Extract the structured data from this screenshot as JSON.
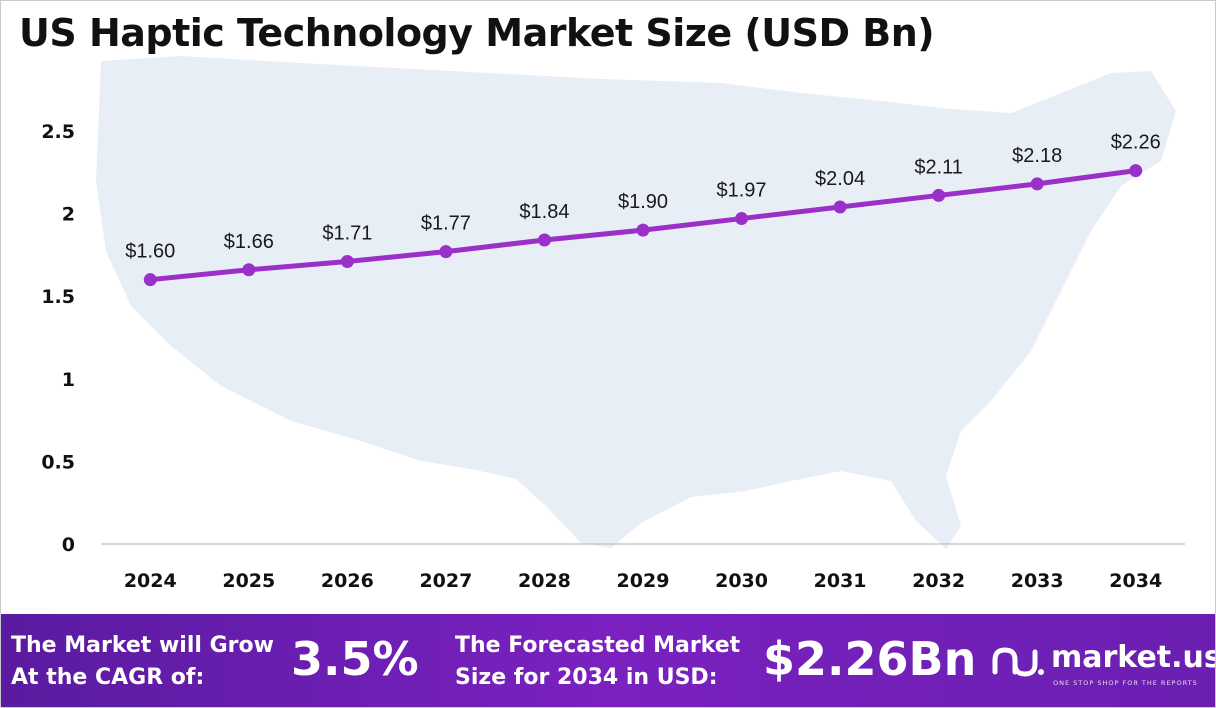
{
  "title": "US Haptic Technology Market Size (USD Bn)",
  "chart_data": {
    "type": "line",
    "title": "US Haptic Technology Market Size (USD Bn)",
    "categories": [
      "2024",
      "2025",
      "2026",
      "2027",
      "2028",
      "2029",
      "2030",
      "2031",
      "2032",
      "2033",
      "2034"
    ],
    "series": [
      {
        "name": "Market Size (USD Bn)",
        "values": [
          1.6,
          1.66,
          1.71,
          1.77,
          1.84,
          1.9,
          1.97,
          2.04,
          2.11,
          2.18,
          2.26
        ]
      }
    ],
    "data_labels": [
      "$1.60",
      "$1.66",
      "$1.71",
      "$1.77",
      "$1.84",
      "$1.90",
      "$1.97",
      "$2.04",
      "$2.11",
      "$2.18",
      "$2.26"
    ],
    "y_ticks": [
      0,
      0.5,
      1,
      1.5,
      2,
      2.5
    ],
    "y_tick_labels": [
      "0",
      "0.5",
      "1",
      "1.5",
      "2",
      "2.5"
    ],
    "ylim": [
      0,
      2.5
    ],
    "xlabel": "",
    "ylabel": "",
    "grid": false,
    "line_color": "#9B30C8"
  },
  "footer": {
    "cagr_text_line1": "The Market will Grow",
    "cagr_text_line2": "At the CAGR of:",
    "cagr_value": "3.5%",
    "forecast_text_line1": "The Forecasted Market",
    "forecast_text_line2": "Size for 2034 in USD:",
    "forecast_value": "$2.26Bn"
  },
  "brand": {
    "name": "market.us",
    "tagline": "ONE STOP SHOP FOR THE REPORTS",
    "logo_icon": "market-us-logo-icon"
  }
}
